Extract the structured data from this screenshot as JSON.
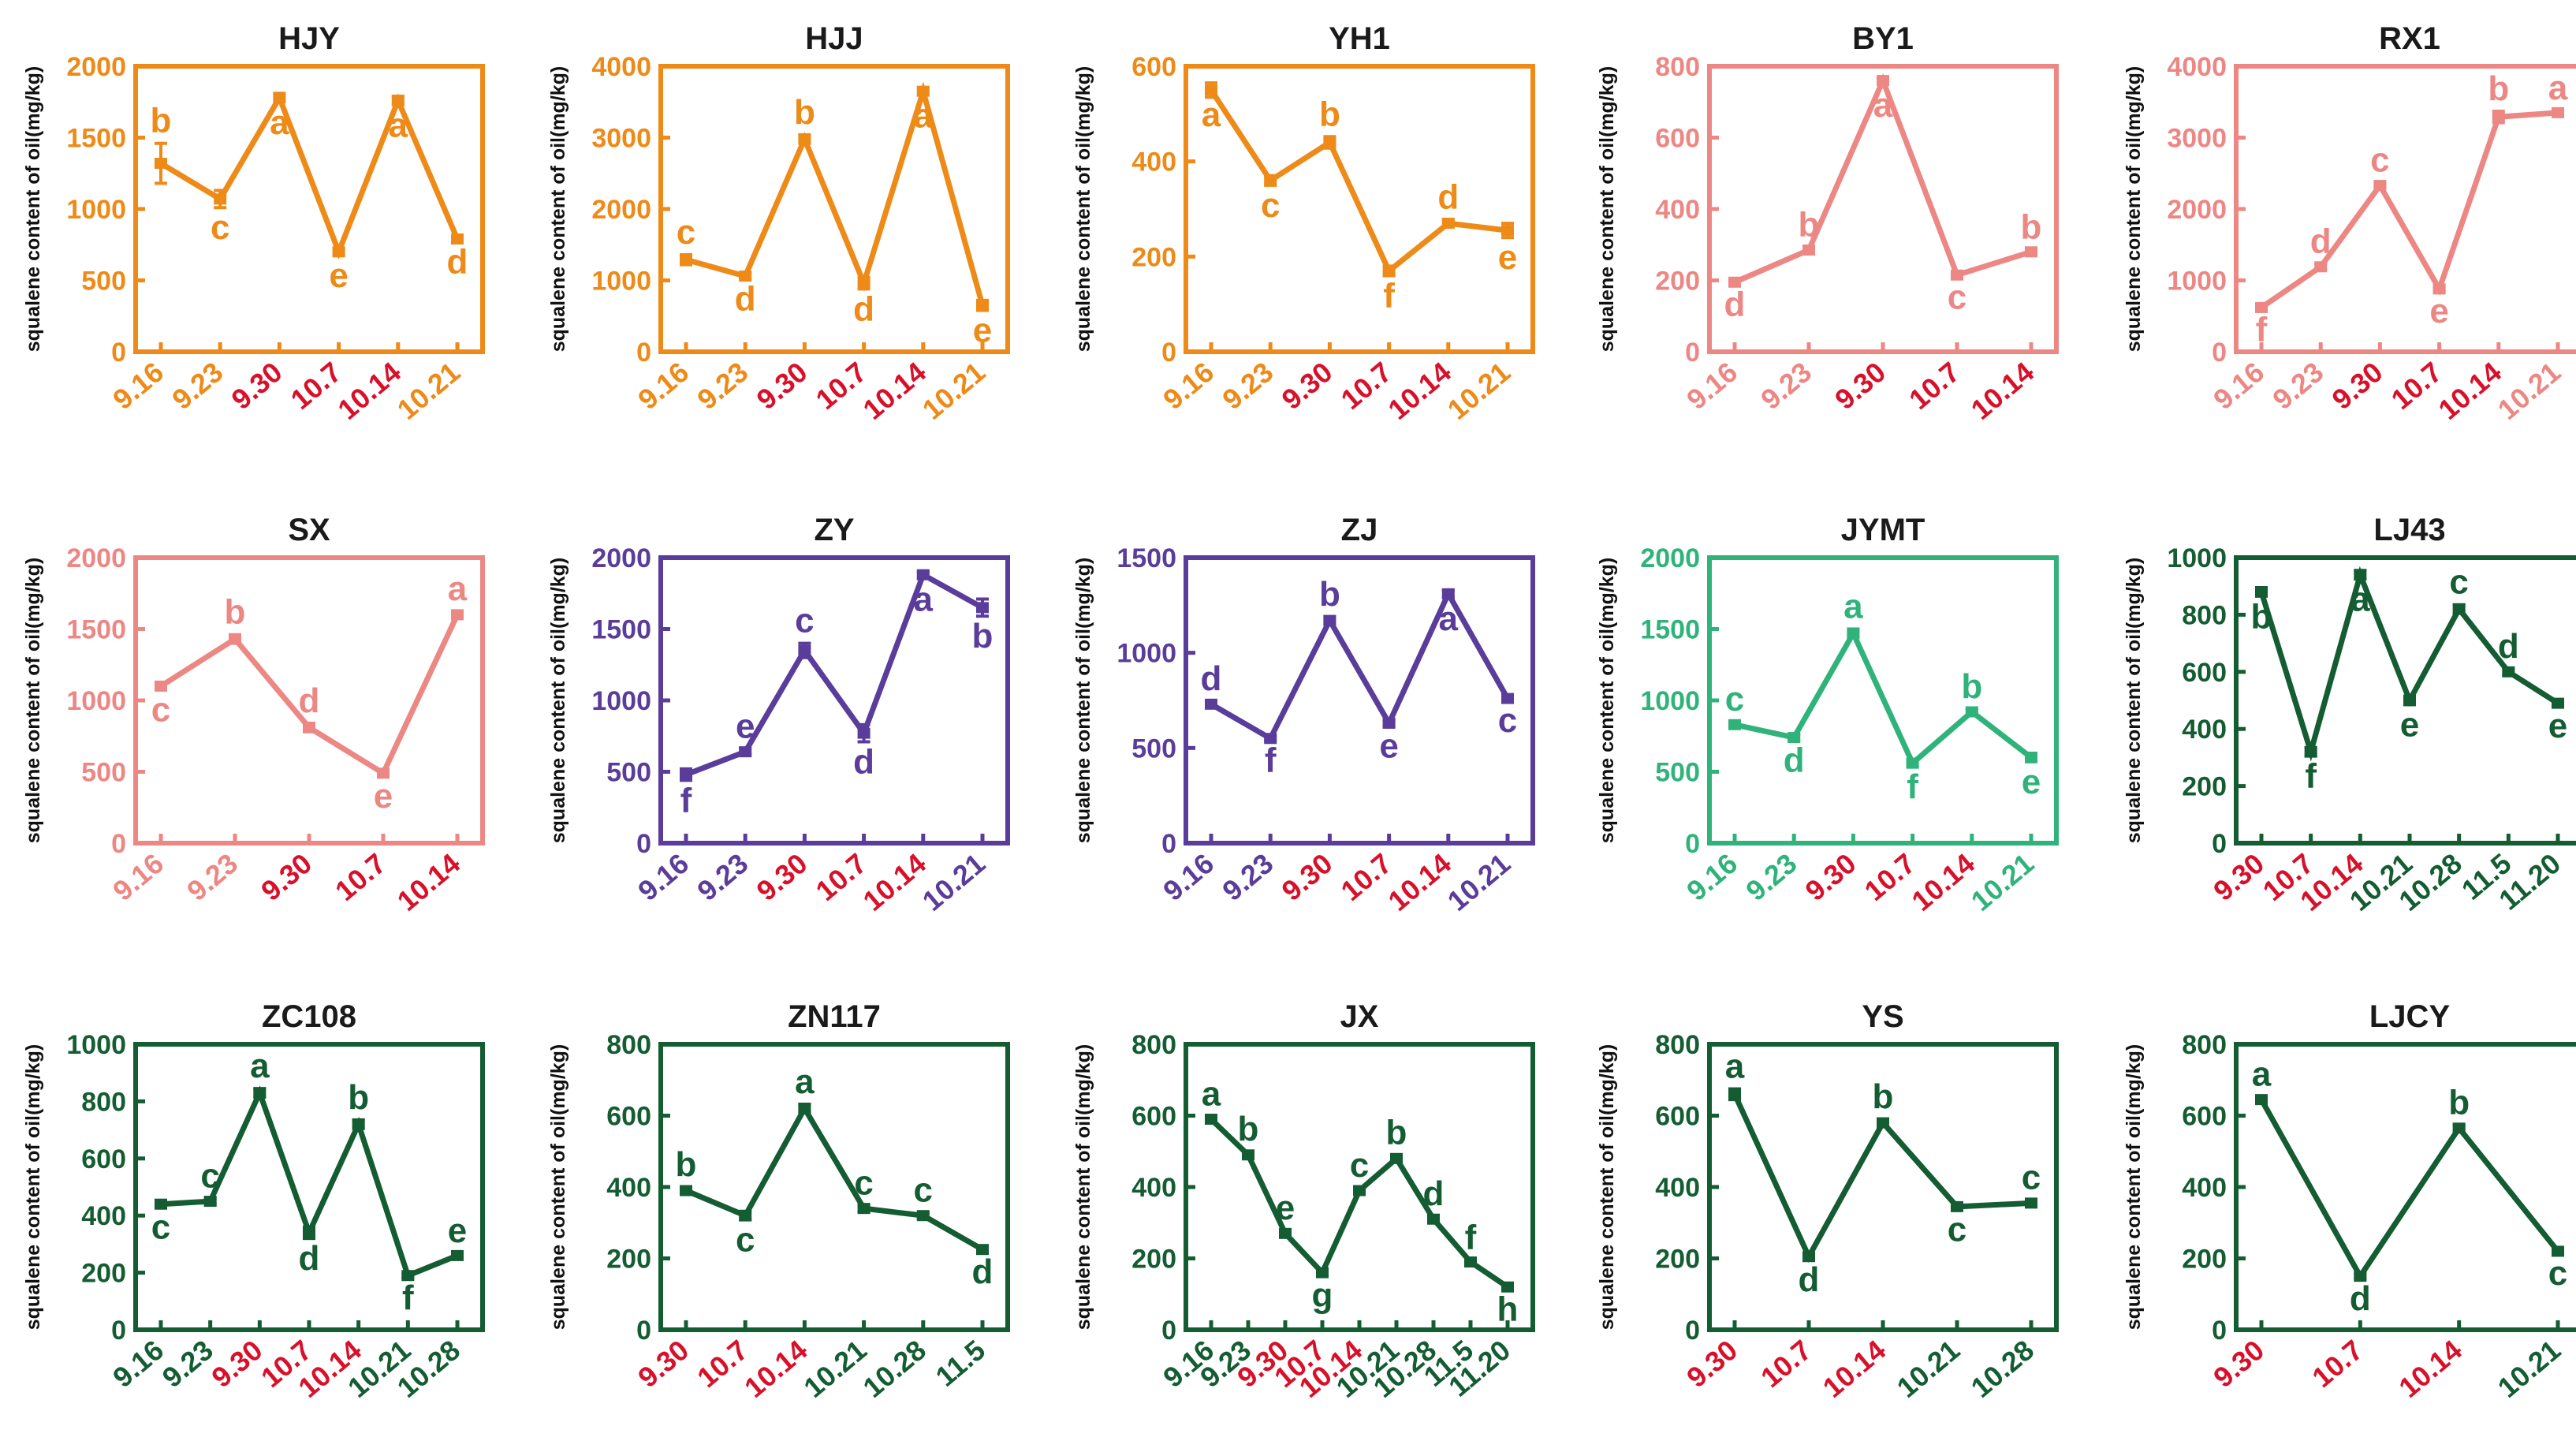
{
  "colors": {
    "orange": "#ee8a17",
    "pink": "#ec8784",
    "purple": "#5a3d9a",
    "teal": "#30b37b",
    "green": "#145c32",
    "red": "#d8102a"
  },
  "chart_data": [
    {
      "title": "HJY",
      "type": "line",
      "color": "orange",
      "ylabel": "squalene content of oil(mg/kg)",
      "ylim": [
        0,
        2000
      ],
      "yticks": [
        0,
        500,
        1000,
        1500,
        2000
      ],
      "x": [
        "9.16",
        "9.23",
        "9.30",
        "10.7",
        "10.14",
        "10.21"
      ],
      "x_red": [
        false,
        false,
        true,
        true,
        true,
        false
      ],
      "values": [
        1320,
        1070,
        1780,
        700,
        1760,
        790
      ],
      "errors": [
        140,
        60,
        30,
        25,
        30,
        20
      ],
      "letters": [
        "b",
        "c",
        "a",
        "e",
        "a",
        "d"
      ]
    },
    {
      "title": "HJJ",
      "type": "line",
      "color": "orange",
      "ylabel": "squalene content of oil(mg/kg)",
      "ylim": [
        0,
        4000
      ],
      "yticks": [
        0,
        1000,
        2000,
        3000,
        4000
      ],
      "x": [
        "9.16",
        "9.23",
        "9.30",
        "10.7",
        "10.14",
        "10.21"
      ],
      "x_red": [
        false,
        false,
        true,
        true,
        true,
        false
      ],
      "values": [
        1290,
        1060,
        2980,
        960,
        3650,
        650
      ],
      "errors": [
        70,
        40,
        60,
        80,
        50,
        70
      ],
      "letters": [
        "c",
        "d",
        "b",
        "d",
        "a",
        "e"
      ]
    },
    {
      "title": "YH1",
      "type": "line",
      "color": "orange",
      "ylabel": "squalene content of oil(mg/kg)",
      "ylim": [
        0,
        600
      ],
      "yticks": [
        0,
        200,
        400,
        600
      ],
      "x": [
        "9.16",
        "9.23",
        "9.30",
        "10.7",
        "10.14",
        "10.21"
      ],
      "x_red": [
        false,
        false,
        true,
        true,
        true,
        false
      ],
      "values": [
        550,
        360,
        440,
        170,
        270,
        255
      ],
      "errors": [
        15,
        10,
        12,
        10,
        8,
        15
      ],
      "letters": [
        "a",
        "c",
        "b",
        "f",
        "d",
        "e"
      ]
    },
    {
      "title": "BY1",
      "type": "line",
      "color": "pink",
      "ylabel": "squalene content of oil(mg/kg)",
      "ylim": [
        0,
        800
      ],
      "yticks": [
        0,
        200,
        400,
        600,
        800
      ],
      "x": [
        "9.16",
        "9.23",
        "9.30",
        "10.7",
        "10.14"
      ],
      "x_red": [
        false,
        false,
        true,
        true,
        true
      ],
      "values": [
        195,
        285,
        760,
        215,
        280
      ],
      "errors": [
        6,
        8,
        10,
        6,
        6
      ],
      "letters": [
        "d",
        "b",
        "a",
        "c",
        "b"
      ]
    },
    {
      "title": "RX1",
      "type": "line",
      "color": "pink",
      "ylabel": "squalene content of oil(mg/kg)",
      "ylim": [
        0,
        4000
      ],
      "yticks": [
        0,
        1000,
        2000,
        3000,
        4000
      ],
      "x": [
        "9.16",
        "9.23",
        "9.30",
        "10.7",
        "10.14",
        "10.21"
      ],
      "x_red": [
        false,
        false,
        true,
        true,
        true,
        false
      ],
      "values": [
        620,
        1190,
        2330,
        880,
        3290,
        3350
      ],
      "errors": [
        30,
        40,
        40,
        30,
        80,
        30
      ],
      "letters": [
        "f",
        "d",
        "c",
        "e",
        "b",
        "a"
      ]
    },
    {
      "title": "SX",
      "type": "line",
      "color": "pink",
      "ylabel": "squalene content of oil(mg/kg)",
      "ylim": [
        0,
        2000
      ],
      "yticks": [
        0,
        500,
        1000,
        1500,
        2000
      ],
      "x": [
        "9.16",
        "9.23",
        "9.30",
        "10.7",
        "10.14"
      ],
      "x_red": [
        false,
        false,
        true,
        true,
        true
      ],
      "values": [
        1100,
        1430,
        810,
        490,
        1600
      ],
      "errors": [
        25,
        30,
        30,
        20,
        25
      ],
      "letters": [
        "c",
        "b",
        "d",
        "e",
        "a"
      ]
    },
    {
      "title": "ZY",
      "type": "line",
      "color": "purple",
      "ylabel": "squalene content of oil(mg/kg)",
      "ylim": [
        0,
        2000
      ],
      "yticks": [
        0,
        500,
        1000,
        1500,
        2000
      ],
      "x": [
        "9.16",
        "9.23",
        "9.30",
        "10.7",
        "10.14",
        "10.21"
      ],
      "x_red": [
        false,
        false,
        true,
        true,
        true,
        false
      ],
      "values": [
        480,
        640,
        1350,
        770,
        1880,
        1650
      ],
      "errors": [
        40,
        20,
        50,
        60,
        20,
        60
      ],
      "letters": [
        "f",
        "e",
        "c",
        "d",
        "a",
        "b"
      ]
    },
    {
      "title": "ZJ",
      "type": "line",
      "color": "purple",
      "ylabel": "squalene content of oil(mg/kg)",
      "ylim": [
        0,
        1500
      ],
      "yticks": [
        0,
        500,
        1000,
        1500
      ],
      "x": [
        "9.16",
        "9.23",
        "9.30",
        "10.7",
        "10.14",
        "10.21"
      ],
      "x_red": [
        false,
        false,
        true,
        true,
        true,
        false
      ],
      "values": [
        730,
        550,
        1170,
        630,
        1310,
        760
      ],
      "errors": [
        15,
        10,
        20,
        15,
        20,
        10
      ],
      "letters": [
        "d",
        "f",
        "b",
        "e",
        "a",
        "c"
      ]
    },
    {
      "title": "JYMT",
      "type": "line",
      "color": "teal",
      "ylabel": "squalene content of oil(mg/kg)",
      "ylim": [
        0,
        2000
      ],
      "yticks": [
        0,
        500,
        1000,
        1500,
        2000
      ],
      "x": [
        "9.16",
        "9.23",
        "9.30",
        "10.7",
        "10.14",
        "10.21"
      ],
      "x_red": [
        false,
        false,
        true,
        true,
        true,
        false
      ],
      "values": [
        830,
        740,
        1470,
        560,
        920,
        600
      ],
      "errors": [
        20,
        20,
        30,
        25,
        20,
        30
      ],
      "letters": [
        "c",
        "d",
        "a",
        "f",
        "b",
        "e"
      ]
    },
    {
      "title": "LJ43",
      "type": "line",
      "color": "green",
      "ylabel": "squalene content of oil(mg/kg)",
      "ylim": [
        0,
        1000
      ],
      "yticks": [
        0,
        200,
        400,
        600,
        800,
        1000
      ],
      "x": [
        "9.30",
        "10.7",
        "10.14",
        "10.21",
        "10.28",
        "11.5",
        "11.20"
      ],
      "x_red": [
        true,
        true,
        true,
        false,
        false,
        false,
        false
      ],
      "values": [
        880,
        320,
        940,
        500,
        820,
        600,
        490
      ],
      "errors": [
        15,
        15,
        15,
        15,
        15,
        10,
        10
      ],
      "letters": [
        "b",
        "f",
        "a",
        "e",
        "c",
        "d",
        "e"
      ]
    },
    {
      "title": "ZC108",
      "type": "line",
      "color": "green",
      "ylabel": "squalene content of oil(mg/kg)",
      "ylim": [
        0,
        1000
      ],
      "yticks": [
        0,
        200,
        400,
        600,
        800,
        1000
      ],
      "x": [
        "9.16",
        "9.23",
        "9.30",
        "10.7",
        "10.14",
        "10.21",
        "10.28"
      ],
      "x_red": [
        false,
        false,
        true,
        true,
        true,
        false,
        false
      ],
      "values": [
        440,
        450,
        830,
        340,
        720,
        190,
        260
      ],
      "errors": [
        10,
        10,
        15,
        20,
        15,
        8,
        8
      ],
      "letters": [
        "c",
        "c",
        "a",
        "d",
        "b",
        "f",
        "e"
      ]
    },
    {
      "title": "ZN117",
      "type": "line",
      "color": "green",
      "ylabel": "squalene content of oil(mg/kg)",
      "ylim": [
        0,
        800
      ],
      "yticks": [
        0,
        200,
        400,
        600,
        800
      ],
      "x": [
        "9.30",
        "10.7",
        "10.14",
        "10.21",
        "10.28",
        "11.5"
      ],
      "x_red": [
        true,
        true,
        true,
        false,
        false,
        false
      ],
      "values": [
        390,
        320,
        620,
        340,
        320,
        225
      ],
      "errors": [
        10,
        12,
        12,
        8,
        8,
        6
      ],
      "letters": [
        "b",
        "c",
        "a",
        "c",
        "c",
        "d"
      ]
    },
    {
      "title": "JX",
      "type": "line",
      "color": "green",
      "ylabel": "squalene content of oil(mg/kg)",
      "ylim": [
        0,
        800
      ],
      "yticks": [
        0,
        200,
        400,
        600,
        800
      ],
      "x": [
        "9.16",
        "9.23",
        "9.30",
        "10.7",
        "10.14",
        "10.21",
        "10.28",
        "11.5",
        "11.20"
      ],
      "x_red": [
        false,
        false,
        true,
        true,
        true,
        false,
        false,
        false,
        false
      ],
      "values": [
        590,
        490,
        270,
        160,
        390,
        480,
        310,
        190,
        120
      ],
      "errors": [
        8,
        10,
        8,
        8,
        8,
        10,
        8,
        6,
        6
      ],
      "letters": [
        "a",
        "b",
        "e",
        "g",
        "c",
        "b",
        "d",
        "f",
        "h"
      ]
    },
    {
      "title": "YS",
      "type": "line",
      "color": "green",
      "ylabel": "squalene content of oil(mg/kg)",
      "ylim": [
        0,
        800
      ],
      "yticks": [
        0,
        200,
        400,
        600,
        800
      ],
      "x": [
        "9.30",
        "10.7",
        "10.14",
        "10.21",
        "10.28"
      ],
      "x_red": [
        true,
        true,
        true,
        false,
        false
      ],
      "values": [
        660,
        205,
        580,
        345,
        355
      ],
      "errors": [
        15,
        8,
        10,
        8,
        8
      ],
      "letters": [
        "a",
        "d",
        "b",
        "c",
        "c"
      ]
    },
    {
      "title": "LJCY",
      "type": "line",
      "color": "green",
      "ylabel": "squalene content of oil(mg/kg)",
      "ylim": [
        0,
        800
      ],
      "yticks": [
        0,
        200,
        400,
        600,
        800
      ],
      "x": [
        "9.30",
        "10.7",
        "10.14",
        "10.21"
      ],
      "x_red": [
        true,
        true,
        true,
        false
      ],
      "values": [
        645,
        150,
        565,
        220
      ],
      "errors": [
        8,
        6,
        8,
        6
      ],
      "letters": [
        "a",
        "d",
        "b",
        "c"
      ]
    }
  ]
}
